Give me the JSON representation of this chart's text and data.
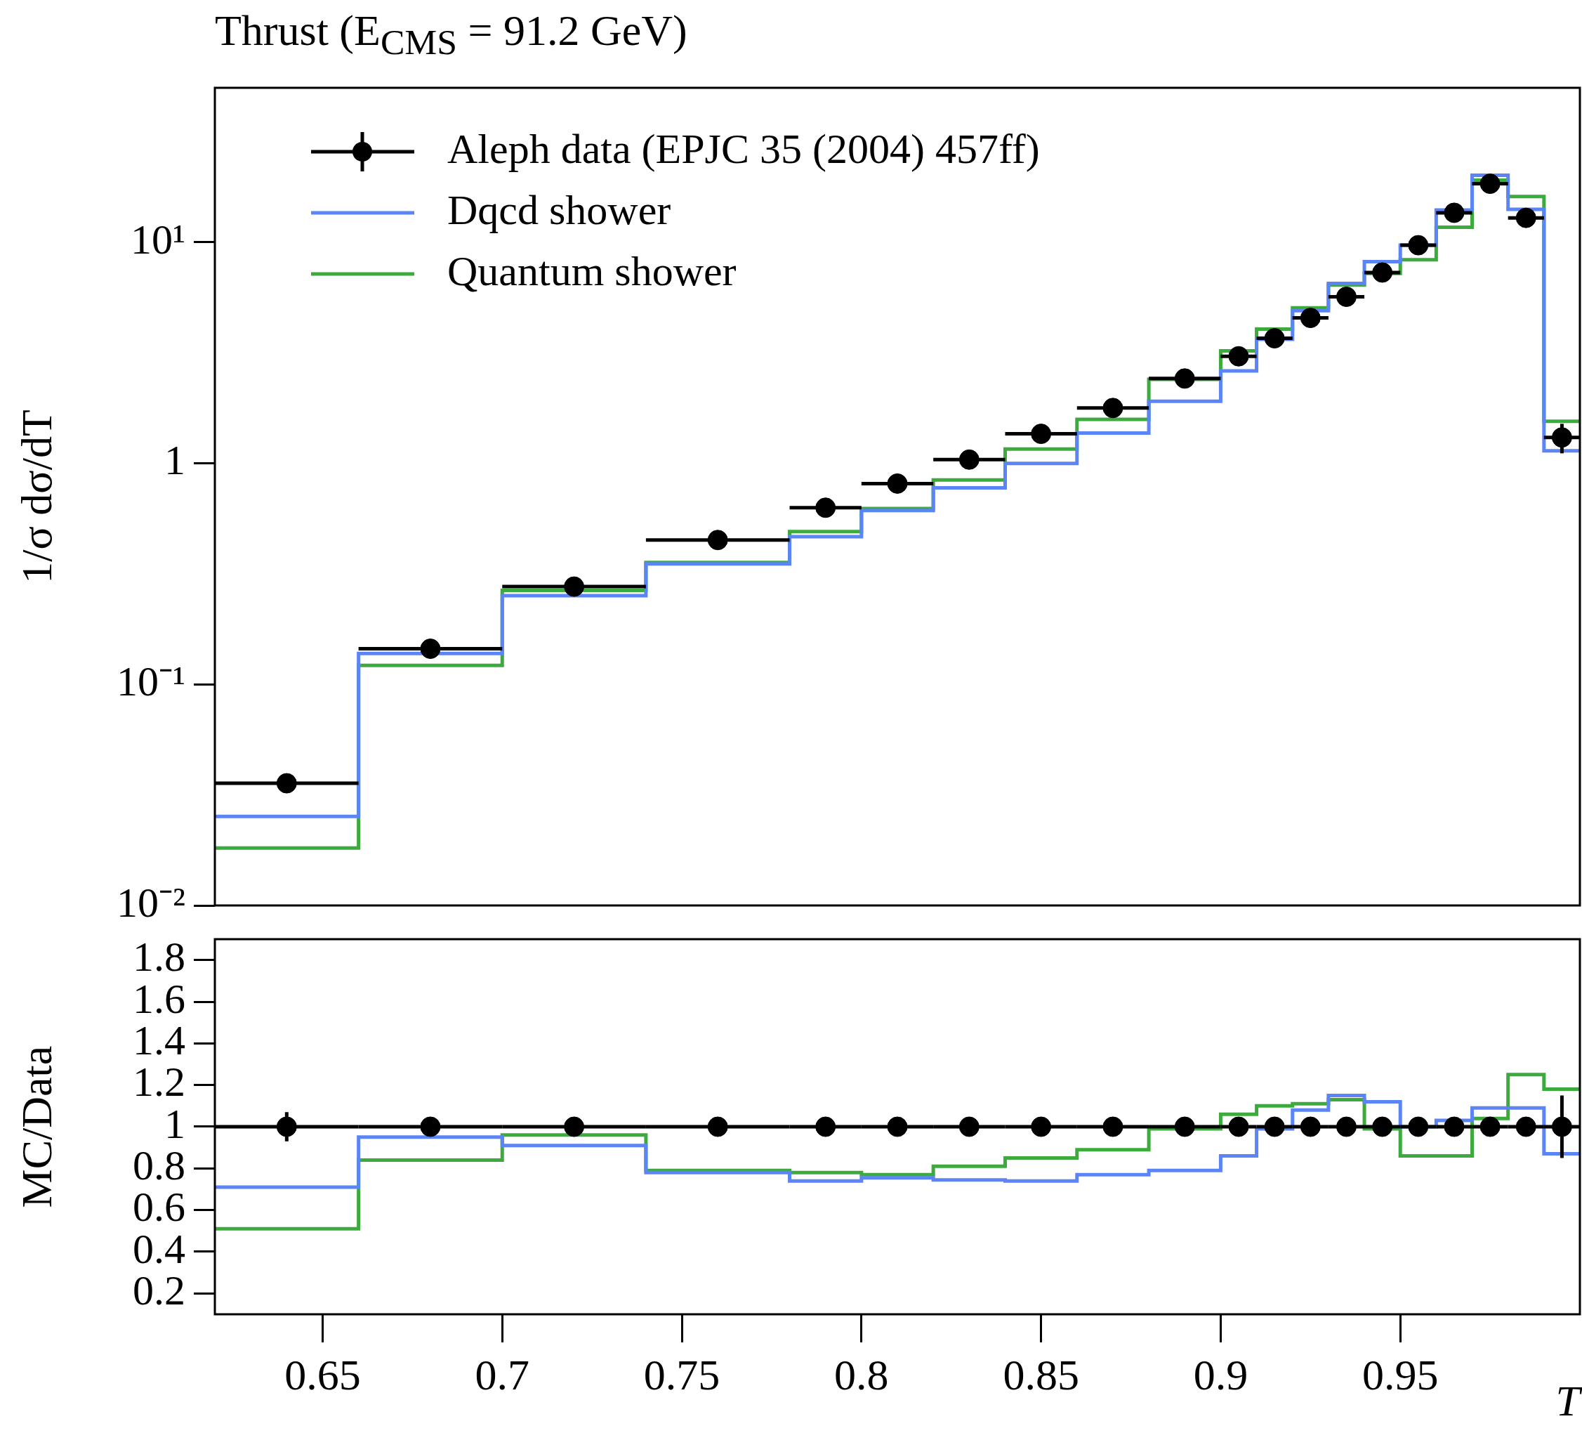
{
  "chart_data": [
    {
      "type": "histogram",
      "title": "Thrust (E$_{CMS}$ = 91.2 GeV)",
      "ylabel": "1/σ dσ/dT",
      "log": true,
      "legend": "top left",
      "tick_labels": "y",
      "bins": [
        0.62,
        0.66,
        0.7,
        0.74,
        0.78,
        0.8,
        0.82,
        0.84,
        0.86,
        0.88,
        0.9,
        0.91,
        0.92,
        0.93,
        0.94,
        0.95,
        0.96,
        0.97,
        0.98,
        0.99,
        1.0
      ],
      "xlim": [
        0.62,
        1.0
      ],
      "xticks": [
        0.65,
        0.7,
        0.75,
        0.8,
        0.85,
        0.9,
        0.95
      ],
      "ylim": [
        0.01,
        50
      ],
      "yticks": [
        {
          "value": 0.01,
          "label": "10⁻²"
        },
        {
          "value": 0.1,
          "label": "10⁻¹"
        },
        {
          "value": 1,
          "label": "1"
        },
        {
          "value": 10,
          "label": "10¹"
        }
      ],
      "series": [
        {
          "name": "Aleph data (EPJC 35 (2004) 457ff)",
          "type": "scatter",
          "marker": "circle",
          "color": "#000000",
          "x": [
            0.64,
            0.68,
            0.72,
            0.76,
            0.79,
            0.81,
            0.83,
            0.85,
            0.87,
            0.89,
            0.905,
            0.915,
            0.925,
            0.935,
            0.945,
            0.955,
            0.965,
            0.975,
            0.985,
            0.995
          ],
          "values": [
            0.0357,
            0.145,
            0.277,
            0.45,
            0.63,
            0.81,
            1.04,
            1.36,
            1.78,
            2.42,
            3.05,
            3.68,
            4.55,
            5.67,
            7.3,
            9.7,
            13.6,
            18.4,
            12.9,
            1.31
          ],
          "xerrors": [
            0.02,
            0.02,
            0.02,
            0.02,
            0.01,
            0.01,
            0.01,
            0.01,
            0.01,
            0.01,
            0.005,
            0.005,
            0.005,
            0.005,
            0.005,
            0.005,
            0.005,
            0.005,
            0.005,
            0.005
          ],
          "errors": [
            null,
            null,
            null,
            null,
            null,
            null,
            null,
            null,
            null,
            null,
            null,
            null,
            null,
            null,
            null,
            null,
            null,
            null,
            null,
            0.2
          ]
        },
        {
          "name": "Dqcd shower",
          "color": "#5b84f5",
          "values": [
            0.0253,
            0.138,
            0.252,
            0.351,
            0.466,
            0.612,
            0.775,
            1.0,
            1.37,
            1.91,
            2.62,
            3.64,
            4.91,
            6.52,
            8.18,
            9.7,
            14.0,
            20.1,
            14.1,
            1.14
          ]
        },
        {
          "name": "Quantum shower",
          "color": "#3caa3c",
          "values": [
            0.0182,
            0.122,
            0.266,
            0.356,
            0.491,
            0.624,
            0.842,
            1.16,
            1.58,
            2.4,
            3.23,
            4.05,
            5.05,
            6.41,
            7.23,
            8.34,
            11.7,
            19.1,
            16.1,
            1.55
          ]
        }
      ]
    },
    {
      "type": "histogram",
      "ylabel": "MC/Data",
      "xlabel": "T",
      "bins": [
        0.62,
        0.66,
        0.7,
        0.74,
        0.78,
        0.8,
        0.82,
        0.84,
        0.86,
        0.88,
        0.9,
        0.91,
        0.92,
        0.93,
        0.94,
        0.95,
        0.96,
        0.97,
        0.98,
        0.99,
        1.0
      ],
      "xlim": [
        0.62,
        1.0
      ],
      "xticks": [
        0.65,
        0.7,
        0.75,
        0.8,
        0.85,
        0.9,
        0.95
      ],
      "ylim": [
        0.1,
        1.9
      ],
      "yticks": [
        0.2,
        0.4,
        0.6,
        0.8,
        1,
        1.2,
        1.4,
        1.6,
        1.8
      ],
      "series": [
        {
          "type": "scatter",
          "marker": "circle",
          "color": "#000000",
          "x": [
            0.64,
            0.68,
            0.72,
            0.76,
            0.79,
            0.81,
            0.83,
            0.85,
            0.87,
            0.89,
            0.905,
            0.915,
            0.925,
            0.935,
            0.945,
            0.955,
            0.965,
            0.975,
            0.985,
            0.995
          ],
          "values": [
            1,
            1,
            1,
            1,
            1,
            1,
            1,
            1,
            1,
            1,
            1,
            1,
            1,
            1,
            1,
            1,
            1,
            1,
            1,
            1
          ],
          "xerrors": [
            0.02,
            0.02,
            0.02,
            0.02,
            0.01,
            0.01,
            0.01,
            0.01,
            0.01,
            0.01,
            0.005,
            0.005,
            0.005,
            0.005,
            0.005,
            0.005,
            0.005,
            0.005,
            0.005,
            0.005
          ],
          "errors": [
            0.07,
            0.045,
            null,
            null,
            null,
            null,
            null,
            null,
            null,
            null,
            null,
            null,
            null,
            null,
            null,
            null,
            null,
            null,
            null,
            0.15
          ]
        },
        {
          "color": "#5b84f5",
          "values": [
            0.71,
            0.95,
            0.91,
            0.78,
            0.74,
            0.755,
            0.745,
            0.74,
            0.77,
            0.79,
            0.86,
            0.99,
            1.08,
            1.15,
            1.12,
            1.0,
            1.03,
            1.09,
            1.09,
            0.87
          ]
        },
        {
          "color": "#3caa3c",
          "values": [
            0.51,
            0.84,
            0.96,
            0.79,
            0.78,
            0.77,
            0.81,
            0.85,
            0.89,
            0.99,
            1.06,
            1.1,
            1.11,
            1.13,
            0.99,
            0.86,
            0.86,
            1.04,
            1.25,
            1.18
          ]
        }
      ]
    }
  ]
}
